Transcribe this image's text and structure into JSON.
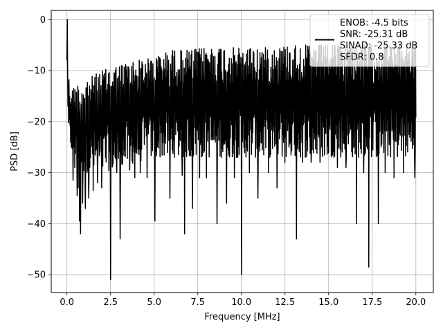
{
  "chart_data": {
    "type": "line",
    "title": "",
    "xlabel": "Frequency [MHz]",
    "ylabel": "PSD [dB]",
    "xlim": [
      -0.9,
      21.0
    ],
    "ylim": [
      -53.5,
      1.8
    ],
    "xticks": [
      0.0,
      2.5,
      5.0,
      7.5,
      10.0,
      12.5,
      15.0,
      17.5,
      20.0
    ],
    "xtick_labels": [
      "0.0",
      "2.5",
      "5.0",
      "7.5",
      "10.0",
      "12.5",
      "15.0",
      "17.5",
      "20.0"
    ],
    "yticks": [
      0,
      -10,
      -20,
      -30,
      -40,
      -50
    ],
    "ytick_labels": [
      "0",
      "−10",
      "−20",
      "−30",
      "−40",
      "−50"
    ],
    "grid": true,
    "legend_position": "top-right",
    "line_color": "#000000",
    "series": [
      {
        "name": "ENOB: -4.5 bits\nSNR: -25.31 dB\nSINAD: -25.33 dB\nSFDR: 0.8",
        "x_range": [
          0,
          20
        ],
        "num_points": 1024,
        "peak": {
          "x": 0.02,
          "y": 0.0
        },
        "envelope_x": [
          0.0,
          0.2,
          0.5,
          1.0,
          2.0,
          3.0,
          4.0,
          5.0,
          6.0,
          7.0,
          8.0,
          9.0,
          10.0,
          11.0,
          12.0,
          13.0,
          14.0,
          15.0,
          16.0,
          17.0,
          18.0,
          19.0,
          20.0
        ],
        "envelope_top": [
          -8,
          -14,
          -13,
          -12,
          -10,
          -9,
          -8,
          -7.5,
          -6,
          -6,
          -5.5,
          -5.5,
          -5.5,
          -5.5,
          -5.5,
          -5,
          -5,
          -5,
          -5,
          -5,
          -5,
          -5,
          -5
        ],
        "envelope_bottom": [
          -22,
          -25,
          -28,
          -30,
          -30,
          -29,
          -28,
          -27,
          -27,
          -27,
          -27,
          -27,
          -27,
          -27,
          -27,
          -27,
          -27,
          -27,
          -27,
          -27,
          -27,
          -27,
          -27
        ],
        "notches": [
          {
            "x": 0.35,
            "y": -31.5
          },
          {
            "x": 0.45,
            "y": -29
          },
          {
            "x": 0.58,
            "y": -34.5
          },
          {
            "x": 0.65,
            "y": -33
          },
          {
            "x": 0.72,
            "y": -39.5
          },
          {
            "x": 0.78,
            "y": -42
          },
          {
            "x": 0.9,
            "y": -36
          },
          {
            "x": 1.05,
            "y": -37
          },
          {
            "x": 1.25,
            "y": -35
          },
          {
            "x": 1.5,
            "y": -33.5
          },
          {
            "x": 1.75,
            "y": -32
          },
          {
            "x": 2.0,
            "y": -33
          },
          {
            "x": 2.5,
            "y": -51
          },
          {
            "x": 2.85,
            "y": -30
          },
          {
            "x": 3.05,
            "y": -43
          },
          {
            "x": 3.6,
            "y": -29.5
          },
          {
            "x": 3.9,
            "y": -31
          },
          {
            "x": 4.2,
            "y": -30
          },
          {
            "x": 4.6,
            "y": -31
          },
          {
            "x": 5.05,
            "y": -39.5
          },
          {
            "x": 5.9,
            "y": -35
          },
          {
            "x": 6.6,
            "y": -30.5
          },
          {
            "x": 6.75,
            "y": -42
          },
          {
            "x": 7.2,
            "y": -37
          },
          {
            "x": 7.6,
            "y": -31
          },
          {
            "x": 8.0,
            "y": -31
          },
          {
            "x": 8.6,
            "y": -40
          },
          {
            "x": 9.15,
            "y": -36
          },
          {
            "x": 9.6,
            "y": -31
          },
          {
            "x": 10.0,
            "y": -50
          },
          {
            "x": 10.45,
            "y": -30
          },
          {
            "x": 10.95,
            "y": -35
          },
          {
            "x": 11.55,
            "y": -30
          },
          {
            "x": 12.05,
            "y": -33
          },
          {
            "x": 12.5,
            "y": -28
          },
          {
            "x": 13.15,
            "y": -43
          },
          {
            "x": 13.5,
            "y": -28
          },
          {
            "x": 14.0,
            "y": -28
          },
          {
            "x": 14.5,
            "y": -28
          },
          {
            "x": 15.5,
            "y": -29
          },
          {
            "x": 16.0,
            "y": -29
          },
          {
            "x": 16.6,
            "y": -40
          },
          {
            "x": 17.0,
            "y": -30
          },
          {
            "x": 17.3,
            "y": -48.5
          },
          {
            "x": 17.85,
            "y": -40
          },
          {
            "x": 18.25,
            "y": -30
          },
          {
            "x": 18.75,
            "y": -31
          },
          {
            "x": 19.3,
            "y": -30
          },
          {
            "x": 19.95,
            "y": -31
          }
        ]
      }
    ]
  }
}
